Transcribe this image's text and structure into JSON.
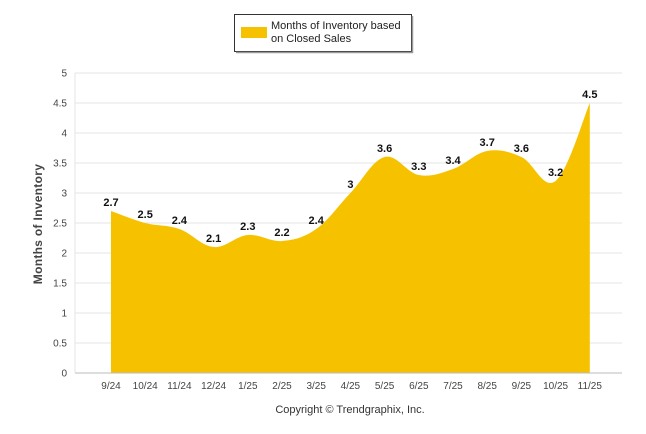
{
  "chart_data": {
    "type": "area",
    "title": "",
    "legend": {
      "label_line1": "Months of Inventory based",
      "label_line2": "on Closed Sales",
      "placement": "top-center"
    },
    "xlabel": "",
    "ylabel": "Months of Inventory",
    "ylim": [
      0,
      5
    ],
    "yticks": [
      0,
      0.5,
      1,
      1.5,
      2,
      2.5,
      3,
      3.5,
      4,
      4.5,
      5
    ],
    "ytick_labels": [
      "0",
      "0.5",
      "1",
      "1.5",
      "2",
      "2.5",
      "3",
      "3.5",
      "4",
      "4.5",
      "5"
    ],
    "grid": true,
    "categories": [
      "9/24",
      "10/24",
      "11/24",
      "12/24",
      "1/25",
      "2/25",
      "3/25",
      "4/25",
      "5/25",
      "6/25",
      "7/25",
      "8/25",
      "9/25",
      "10/25",
      "11/25"
    ],
    "series": [
      {
        "name": "Months of Inventory based on Closed Sales",
        "color": "#f6c200",
        "values": [
          2.7,
          2.5,
          2.4,
          2.1,
          2.3,
          2.2,
          2.4,
          3,
          3.6,
          3.3,
          3.4,
          3.7,
          3.6,
          3.2,
          4.5
        ],
        "labels": [
          "2.7",
          "2.5",
          "2.4",
          "2.1",
          "2.3",
          "2.2",
          "2.4",
          "3",
          "3.6",
          "3.3",
          "3.4",
          "3.7",
          "3.6",
          "3.2",
          "4.5"
        ]
      }
    ],
    "footer": "Copyright © Trendgraphix, Inc."
  }
}
